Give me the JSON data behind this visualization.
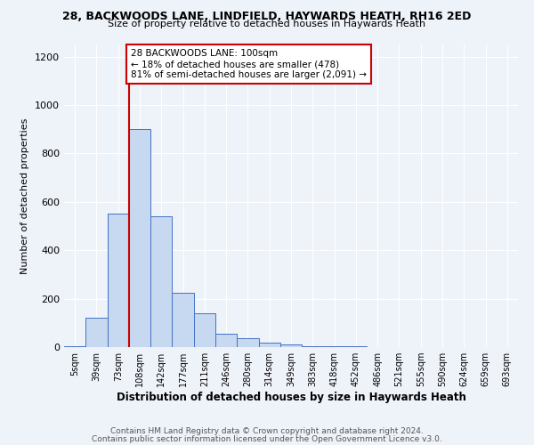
{
  "title1": "28, BACKWOODS LANE, LINDFIELD, HAYWARDS HEATH, RH16 2ED",
  "title2": "Size of property relative to detached houses in Haywards Heath",
  "xlabel": "Distribution of detached houses by size in Haywards Heath",
  "ylabel": "Number of detached properties",
  "categories": [
    "5sqm",
    "39sqm",
    "73sqm",
    "108sqm",
    "142sqm",
    "177sqm",
    "211sqm",
    "246sqm",
    "280sqm",
    "314sqm",
    "349sqm",
    "383sqm",
    "418sqm",
    "452sqm",
    "486sqm",
    "521sqm",
    "555sqm",
    "590sqm",
    "624sqm",
    "659sqm",
    "693sqm"
  ],
  "values": [
    5,
    120,
    550,
    900,
    540,
    225,
    140,
    55,
    35,
    20,
    10,
    5,
    5,
    3,
    0,
    0,
    0,
    0,
    0,
    0,
    0
  ],
  "bar_color": "#c6d9f0",
  "bar_edge_color": "#4472c4",
  "annotation_text": "28 BACKWOODS LANE: 100sqm\n← 18% of detached houses are smaller (478)\n81% of semi-detached houses are larger (2,091) →",
  "annotation_box_color": "#ffffff",
  "annotation_box_edge_color": "#cc0000",
  "red_line_color": "#cc0000",
  "ylim": [
    0,
    1250
  ],
  "yticks": [
    0,
    200,
    400,
    600,
    800,
    1000,
    1200
  ],
  "footnote1": "Contains HM Land Registry data © Crown copyright and database right 2024.",
  "footnote2": "Contains public sector information licensed under the Open Government Licence v3.0.",
  "bg_color": "#eef2f9",
  "grid_color": "#ffffff"
}
